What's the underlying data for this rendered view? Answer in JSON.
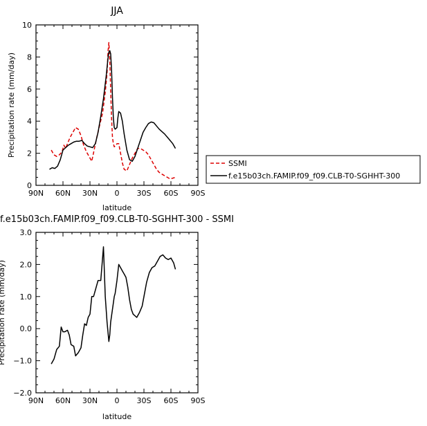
{
  "chart_data": [
    {
      "type": "line",
      "title": "JJA",
      "xlabel": "latitude",
      "ylabel": "Precipitation rate (mm/day)",
      "xlim": [
        90,
        -90
      ],
      "ylim": [
        0,
        10
      ],
      "x_ticks": [
        90,
        60,
        30,
        0,
        -30,
        -60,
        -90
      ],
      "x_tick_labels": [
        "90N",
        "60N",
        "30N",
        "0",
        "30S",
        "60S",
        "90S"
      ],
      "y_ticks": [
        0,
        2,
        4,
        6,
        8,
        10
      ],
      "y_tick_labels": [
        "0",
        "2",
        "4",
        "6",
        "8",
        "10"
      ],
      "legend_position": "right",
      "series": [
        {
          "name": "SSMI",
          "color": "#dd0000",
          "dash": true,
          "x": [
            73,
            70,
            67,
            64,
            61,
            59,
            57,
            55,
            52,
            49,
            46,
            43,
            40,
            37,
            34,
            31,
            28,
            25,
            22,
            19,
            16,
            13,
            11,
            10,
            9,
            8,
            7,
            6,
            5,
            4,
            3,
            1,
            0,
            -2,
            -4,
            -6,
            -8,
            -11,
            -14,
            -17,
            -20,
            -23,
            -26,
            -29,
            -32,
            -35,
            -38,
            -41,
            -44,
            -47,
            -50,
            -53,
            -56,
            -59,
            -62,
            -65
          ],
          "values": [
            2.2,
            1.9,
            1.8,
            1.9,
            2.1,
            2.5,
            2.3,
            2.6,
            3.0,
            3.3,
            3.6,
            3.5,
            3.1,
            2.5,
            2.1,
            1.8,
            1.5,
            2.3,
            3.1,
            3.8,
            4.5,
            5.8,
            7.0,
            8.3,
            8.9,
            7.8,
            6.0,
            4.2,
            3.0,
            2.6,
            2.4,
            2.5,
            2.6,
            2.6,
            2.0,
            1.4,
            1.0,
            0.9,
            1.3,
            1.7,
            2.0,
            2.3,
            2.3,
            2.2,
            2.1,
            1.9,
            1.6,
            1.3,
            1.0,
            0.8,
            0.7,
            0.6,
            0.5,
            0.4,
            0.45,
            0.5
          ]
        },
        {
          "name": "f.e15b03ch.FAMIP.f09_f09.CLB-T0-SGHHT-300",
          "color": "#000000",
          "dash": false,
          "x": [
            75,
            72,
            69,
            66,
            63,
            60,
            57,
            54,
            51,
            48,
            45,
            42,
            39,
            36,
            33,
            30,
            27,
            24,
            21,
            18,
            15,
            12,
            10,
            9,
            8,
            7,
            6,
            5,
            4,
            3,
            2,
            1,
            0,
            -1,
            -2,
            -4,
            -6,
            -8,
            -11,
            -14,
            -17,
            -20,
            -23,
            -26,
            -29,
            -32,
            -35,
            -38,
            -41,
            -44,
            -47,
            -50,
            -53,
            -56,
            -59,
            -62,
            -65
          ],
          "values": [
            1.0,
            1.1,
            1.05,
            1.2,
            1.6,
            2.2,
            2.35,
            2.5,
            2.6,
            2.7,
            2.75,
            2.75,
            2.8,
            2.6,
            2.45,
            2.4,
            2.35,
            2.6,
            3.3,
            4.3,
            5.4,
            6.8,
            7.9,
            8.3,
            8.4,
            8.2,
            7.2,
            5.5,
            4.2,
            3.6,
            3.5,
            3.55,
            3.6,
            4.2,
            4.6,
            4.5,
            4.0,
            3.2,
            2.2,
            1.6,
            1.5,
            1.8,
            2.3,
            2.8,
            3.3,
            3.6,
            3.85,
            3.95,
            3.9,
            3.7,
            3.5,
            3.35,
            3.2,
            3.0,
            2.8,
            2.6,
            2.3
          ]
        }
      ]
    },
    {
      "type": "line",
      "title": "f.e15b03ch.FAMIP.f09_f09.CLB-T0-SGHHT-300 - SSMI",
      "xlabel": "latitude",
      "ylabel": "Precipitation rate (mm/day)",
      "xlim": [
        90,
        -90
      ],
      "ylim": [
        -2.0,
        3.0
      ],
      "x_ticks": [
        90,
        60,
        30,
        0,
        -30,
        -60,
        -90
      ],
      "x_tick_labels": [
        "90N",
        "60N",
        "30N",
        "0",
        "30S",
        "60S",
        "90S"
      ],
      "y_ticks": [
        -2.0,
        -1.0,
        0.0,
        1.0,
        2.0,
        3.0
      ],
      "y_tick_labels": [
        "−2.0",
        "−1.0",
        "0.0",
        "1.0",
        "2.0",
        "3.0"
      ],
      "series": [
        {
          "name": "",
          "color": "#000000",
          "dash": false,
          "x": [
            73,
            70,
            67,
            64,
            62,
            60,
            58,
            55,
            53,
            51,
            48,
            46,
            43,
            40,
            38,
            36,
            34,
            32,
            30,
            28,
            26,
            24,
            21,
            18,
            15,
            13,
            11,
            10,
            9,
            8,
            7,
            6,
            5,
            4,
            3,
            2,
            1,
            0,
            -2,
            -4,
            -6,
            -8,
            -10,
            -12,
            -14,
            -16,
            -18,
            -20,
            -22,
            -25,
            -28,
            -30,
            -33,
            -36,
            -39,
            -42,
            -45,
            -48,
            -51,
            -54,
            -57,
            -60,
            -63,
            -65
          ],
          "values": [
            -1.1,
            -0.95,
            -0.65,
            -0.55,
            0.05,
            -0.1,
            -0.1,
            -0.05,
            -0.2,
            -0.5,
            -0.55,
            -0.85,
            -0.75,
            -0.6,
            -0.2,
            0.15,
            0.1,
            0.35,
            0.45,
            1.0,
            1.0,
            1.2,
            1.5,
            1.5,
            2.55,
            1.0,
            0.2,
            -0.1,
            -0.4,
            -0.2,
            0.2,
            0.4,
            0.6,
            0.8,
            1.0,
            1.1,
            1.3,
            1.5,
            2.0,
            1.9,
            1.8,
            1.7,
            1.6,
            1.3,
            0.9,
            0.6,
            0.45,
            0.4,
            0.35,
            0.5,
            0.7,
            1.0,
            1.45,
            1.75,
            1.9,
            1.95,
            2.1,
            2.25,
            2.3,
            2.2,
            2.15,
            2.2,
            2.05,
            1.85
          ]
        }
      ]
    }
  ]
}
